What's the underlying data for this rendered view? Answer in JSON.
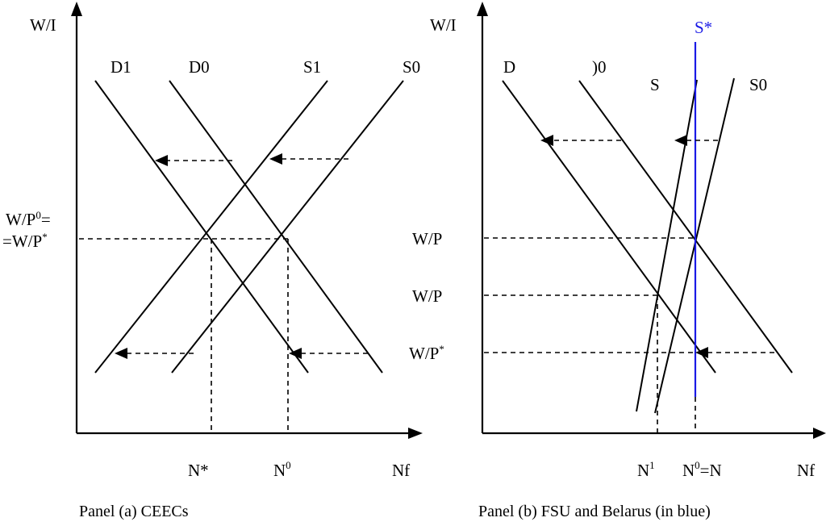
{
  "panel_a": {
    "y_axis_label": "W/I",
    "x_axis_label": "Nf",
    "curve_labels": {
      "d1": "D1",
      "d0": "D0",
      "s1": "S1",
      "s0": "S0"
    },
    "wage_label_line1": "W/P",
    "wage_label_line1_sup": "0",
    "wage_label_line1_tail": "=",
    "wage_label_line2": "=W/P",
    "wage_label_line2_sup": "*",
    "n_star_label": "N*",
    "n0_label": "N",
    "n0_sup": "0",
    "caption": "Panel (a) CEECs"
  },
  "panel_b": {
    "y_axis_label": "W/I",
    "x_axis_label": "Nf",
    "curve_labels": {
      "d1": "D",
      "d0": ")0",
      "s1": "S",
      "s0": "S0",
      "s_star": "S*"
    },
    "wage_labels": [
      "W/P",
      "W/P",
      "W/P"
    ],
    "wage_label_3_sup": "*",
    "n1_label": "N",
    "n1_sup": "1",
    "n0_label_pre": "N",
    "n0_sup": "0",
    "n0_label_post": "=N",
    "caption": "Panel (b) FSU and Belarus (in blue)",
    "s_star_color": "#1a1ae6"
  }
}
